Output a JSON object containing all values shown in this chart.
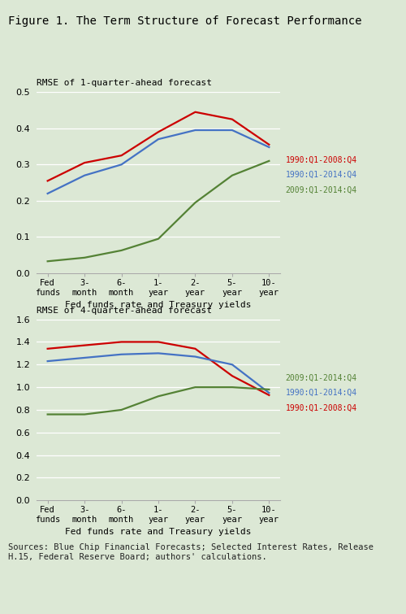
{
  "title": "Figure 1. The Term Structure of Forecast Performance",
  "x_labels": [
    "Fed\nfunds",
    "3-\nmonth",
    "6-\nmonth",
    "1-\nyear",
    "2-\nyear",
    "5-\nyear",
    "10-\nyear"
  ],
  "xlabel": "Fed funds rate and Treasury yields",
  "panel1_title": "RMSE of 1-quarter-ahead forecast",
  "panel1_ylim": [
    0.0,
    0.5
  ],
  "panel1_yticks": [
    0.0,
    0.1,
    0.2,
    0.3,
    0.4,
    0.5
  ],
  "panel1_red": [
    0.255,
    0.305,
    0.325,
    0.39,
    0.445,
    0.425,
    0.355
  ],
  "panel1_blue": [
    0.22,
    0.27,
    0.3,
    0.37,
    0.395,
    0.395,
    0.348
  ],
  "panel1_green": [
    0.033,
    0.043,
    0.063,
    0.095,
    0.195,
    0.27,
    0.31
  ],
  "panel2_title": "RMSE of 4-quarter-ahead forecast",
  "panel2_ylim": [
    0.0,
    1.6
  ],
  "panel2_yticks": [
    0.0,
    0.2,
    0.4,
    0.6,
    0.8,
    1.0,
    1.2,
    1.4,
    1.6
  ],
  "panel2_red": [
    1.34,
    1.37,
    1.4,
    1.4,
    1.34,
    1.1,
    0.93
  ],
  "panel2_blue": [
    1.23,
    1.26,
    1.29,
    1.3,
    1.27,
    1.2,
    0.95
  ],
  "panel2_green": [
    0.76,
    0.76,
    0.8,
    0.92,
    1.0,
    1.0,
    0.98
  ],
  "legend1_red": "1990:Q1-2008:Q4",
  "legend1_blue": "1990:Q1-2014:Q4",
  "legend1_green": "2009:Q1-2014:Q4",
  "legend2_green": "2009:Q1-2014:Q4",
  "legend2_blue": "1990:Q1-2014:Q4",
  "legend2_red": "1990:Q1-2008:Q4",
  "color_red": "#cc0000",
  "color_blue": "#4472c4",
  "color_green": "#548235",
  "footnote": "Sources: Blue Chip Financial Forecasts; Selected Interest Rates, Release\nH.15, Federal Reserve Board; authors' calculations.",
  "background_color": "#dce8d5"
}
